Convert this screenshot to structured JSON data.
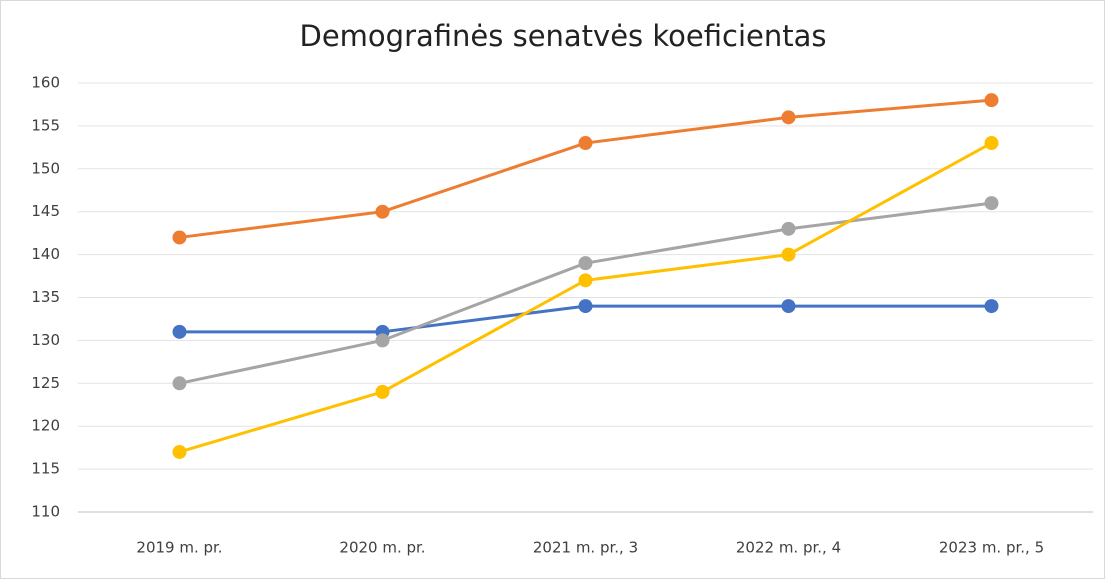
{
  "chart_data": {
    "type": "line",
    "title": "Demografinės senatvės koeficientas",
    "categories": [
      "2019 m. pr.",
      "2020 m. pr.",
      "2021 m. pr., 3",
      "2022 m. pr., 4",
      "2023 m. pr., 5"
    ],
    "series": [
      {
        "color": "#4472c4",
        "values": [
          131,
          131,
          134,
          134,
          134
        ]
      },
      {
        "color": "#ed7d31",
        "values": [
          142,
          145,
          153,
          156,
          158
        ]
      },
      {
        "color": "#a5a5a5",
        "values": [
          125,
          130,
          139,
          143,
          146
        ]
      },
      {
        "color": "#ffc000",
        "values": [
          117,
          124,
          137,
          140,
          153
        ]
      }
    ],
    "ylim": [
      110,
      160
    ],
    "yticks": [
      110,
      115,
      120,
      125,
      130,
      135,
      140,
      145,
      150,
      155,
      160
    ],
    "grid": true
  }
}
